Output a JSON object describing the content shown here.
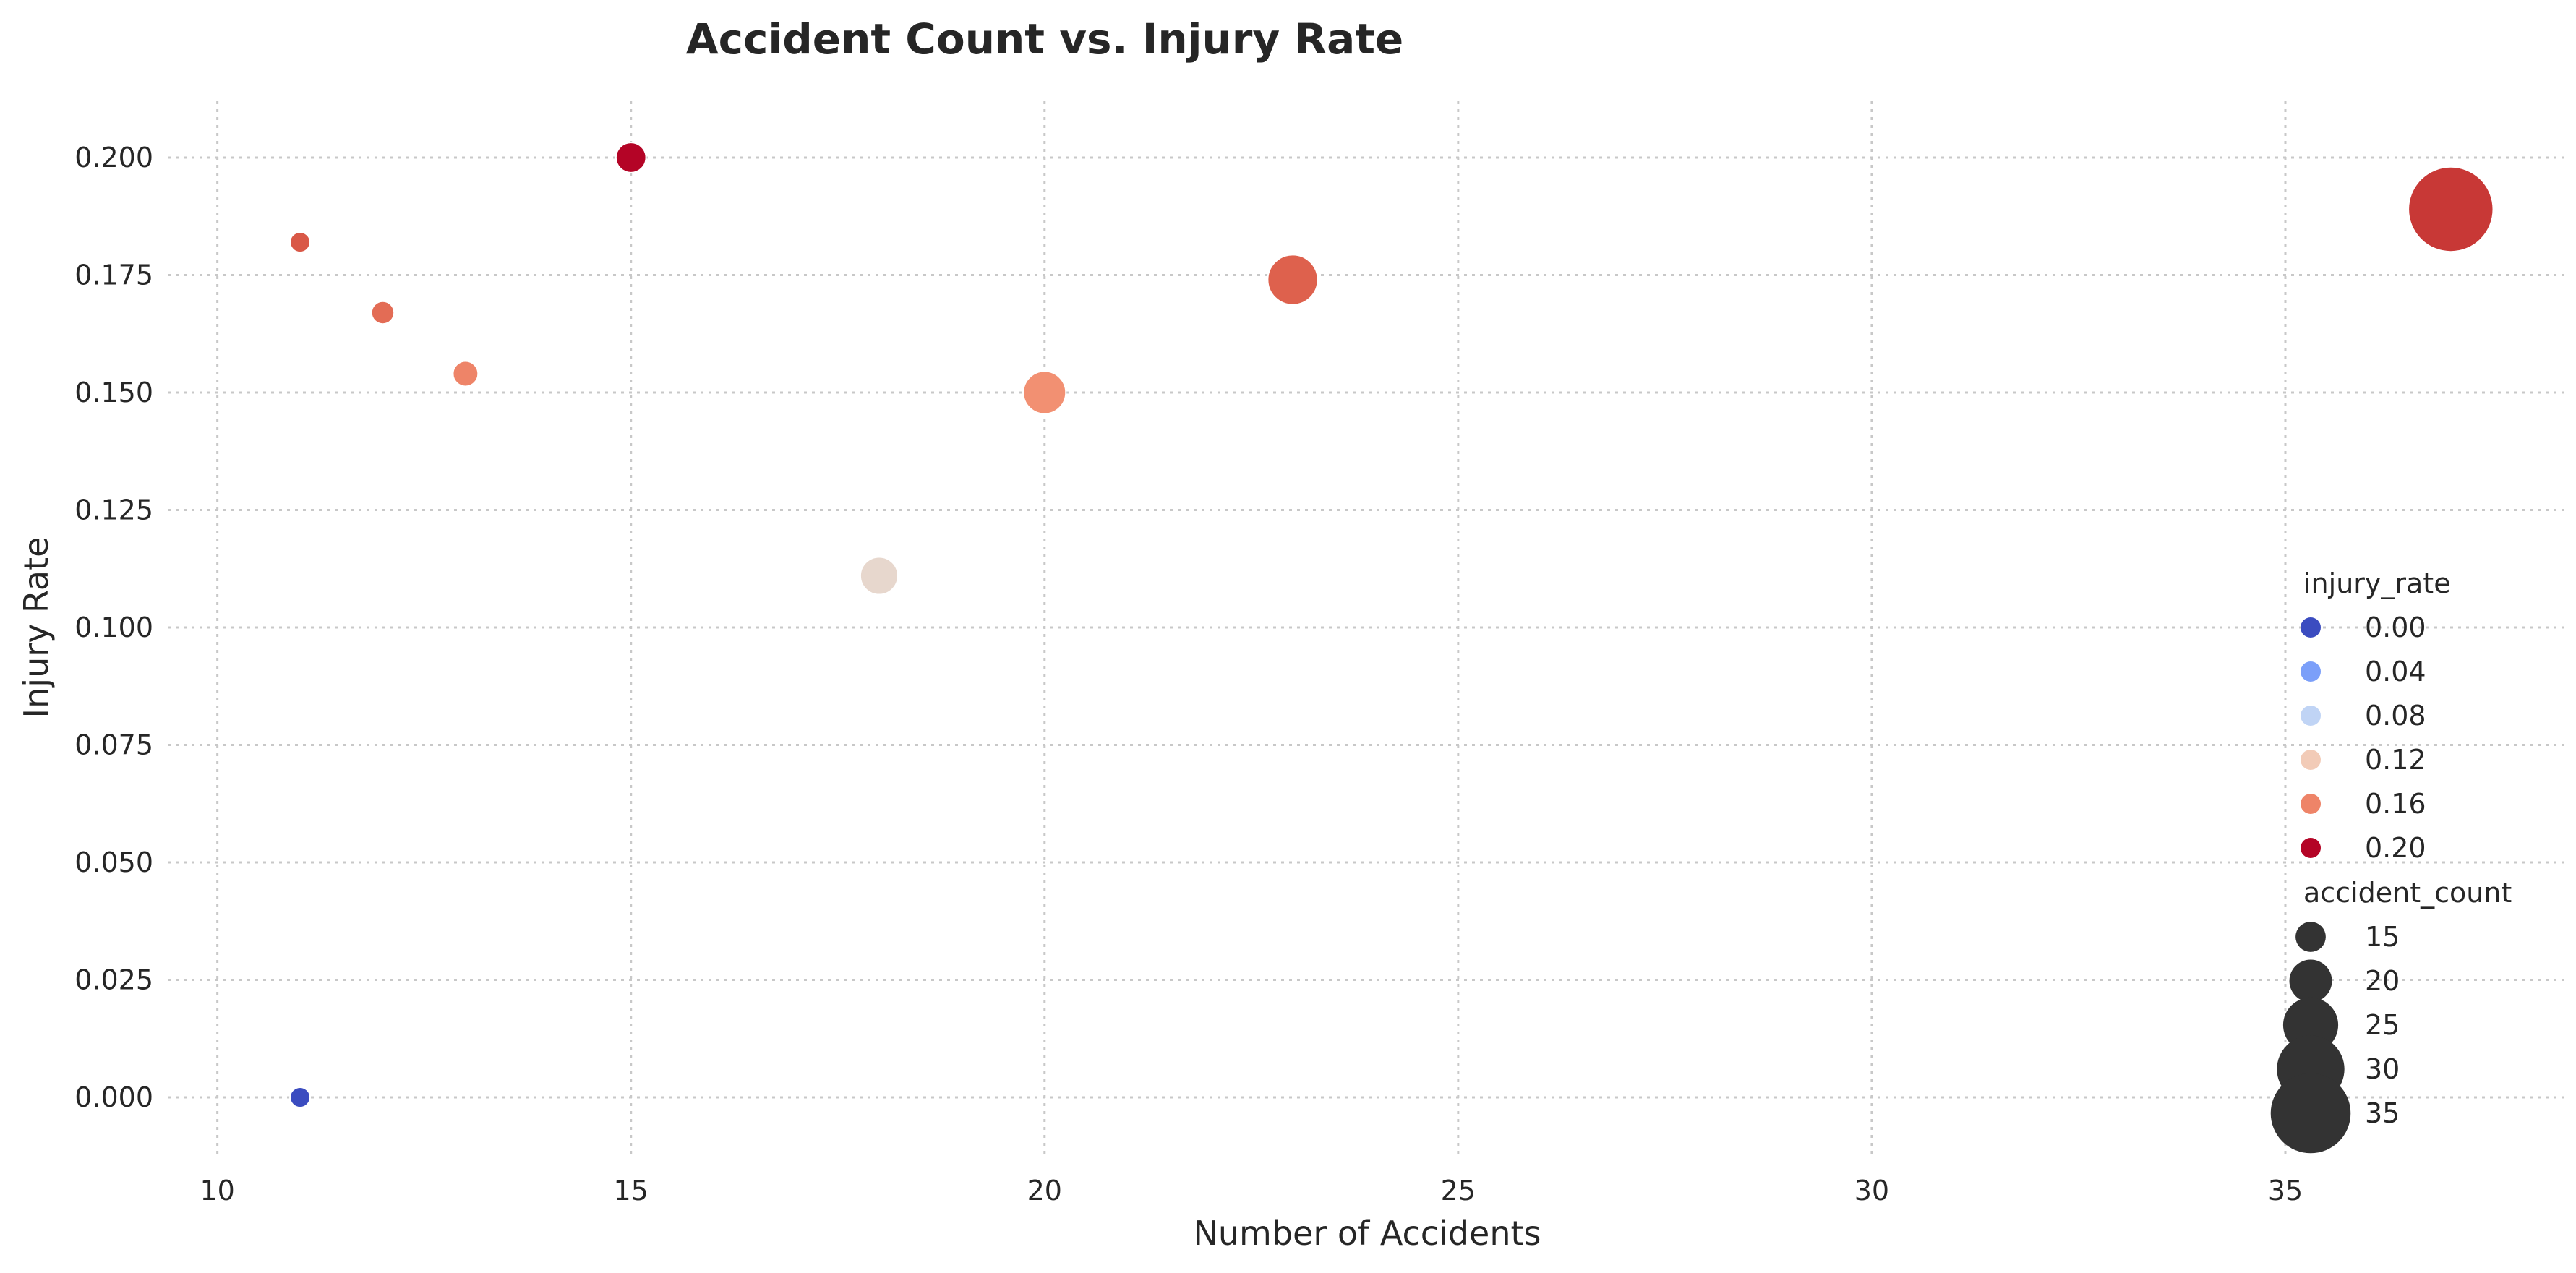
{
  "chart_data": {
    "type": "scatter",
    "title": "Accident Count vs. Injury Rate",
    "xlabel": "Number of Accidents",
    "ylabel": "Injury Rate",
    "xlim": [
      9.4,
      38.4
    ],
    "ylim": [
      -0.012,
      0.212
    ],
    "xticks": [
      10,
      15,
      20,
      25,
      30,
      35
    ],
    "xtick_labels": [
      "10",
      "15",
      "20",
      "25",
      "30",
      "35"
    ],
    "yticks": [
      0.0,
      0.025,
      0.05,
      0.075,
      0.1,
      0.125,
      0.15,
      0.175,
      0.2
    ],
    "ytick_labels": [
      "0.000",
      "0.025",
      "0.050",
      "0.075",
      "0.100",
      "0.125",
      "0.150",
      "0.175",
      "0.200"
    ],
    "grid": true,
    "color_encoding": "injury_rate",
    "size_encoding": "accident_count",
    "colormap": "coolwarm",
    "points": [
      {
        "x": 11,
        "y": 0.182,
        "color": "#d95847"
      },
      {
        "x": 11,
        "y": 0.0,
        "color": "#3b4cc0"
      },
      {
        "x": 12,
        "y": 0.167,
        "color": "#e36c55"
      },
      {
        "x": 13,
        "y": 0.154,
        "color": "#ee8468"
      },
      {
        "x": 15,
        "y": 0.2,
        "color": "#b40426"
      },
      {
        "x": 18,
        "y": 0.111,
        "color": "#e7d7cd"
      },
      {
        "x": 20,
        "y": 0.15,
        "color": "#f29072"
      },
      {
        "x": 23,
        "y": 0.174,
        "color": "#de614d"
      },
      {
        "x": 37,
        "y": 0.189,
        "color": "#c83836"
      }
    ],
    "legend": {
      "position": "lower-right",
      "hue_title": "injury_rate",
      "hue_entries": [
        {
          "label": "0.00",
          "color": "#3b4cc0"
        },
        {
          "label": "0.04",
          "color": "#7b9ff9"
        },
        {
          "label": "0.08",
          "color": "#c0d4f5"
        },
        {
          "label": "0.12",
          "color": "#f2cbb7"
        },
        {
          "label": "0.16",
          "color": "#ee8468"
        },
        {
          "label": "0.20",
          "color": "#b40426"
        }
      ],
      "size_title": "accident_count",
      "size_entries": [
        {
          "label": "15",
          "value": 15
        },
        {
          "label": "20",
          "value": 20
        },
        {
          "label": "25",
          "value": 25
        },
        {
          "label": "30",
          "value": 30
        },
        {
          "label": "35",
          "value": 35
        }
      ],
      "size_color": "#333333"
    }
  }
}
